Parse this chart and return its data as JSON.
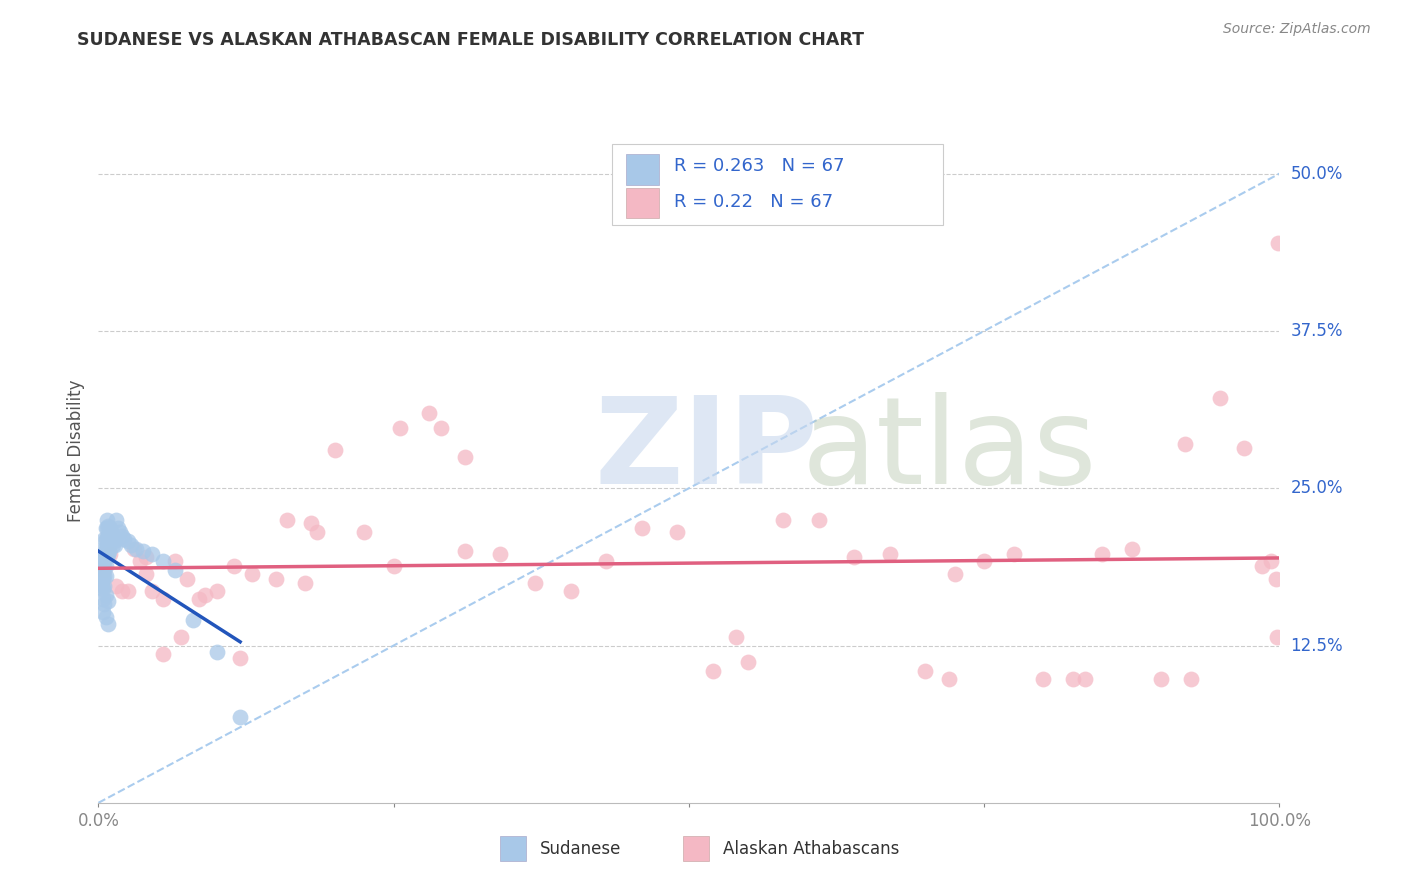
{
  "title": "SUDANESE VS ALASKAN ATHABASCAN FEMALE DISABILITY CORRELATION CHART",
  "source": "Source: ZipAtlas.com",
  "ylabel": "Female Disability",
  "xlim": [
    0.0,
    1.0
  ],
  "ylim": [
    0.0,
    0.56
  ],
  "ytick_labels": [
    "12.5%",
    "25.0%",
    "37.5%",
    "50.0%"
  ],
  "ytick_values": [
    0.125,
    0.25,
    0.375,
    0.5
  ],
  "R_sudanese": 0.263,
  "N_sudanese": 67,
  "R_alaskan": 0.22,
  "N_alaskan": 67,
  "color_sudanese": "#A8C8E8",
  "color_alaskan": "#F4B8C4",
  "line_color_sudanese": "#2255BB",
  "line_color_alaskan": "#E06080",
  "dashed_line_color": "#AACCEE",
  "background_color": "#FFFFFF",
  "sudanese_x": [
    0.001,
    0.001,
    0.002,
    0.002,
    0.002,
    0.003,
    0.003,
    0.003,
    0.003,
    0.004,
    0.004,
    0.004,
    0.004,
    0.004,
    0.005,
    0.005,
    0.005,
    0.005,
    0.005,
    0.005,
    0.006,
    0.006,
    0.006,
    0.006,
    0.006,
    0.006,
    0.007,
    0.007,
    0.007,
    0.007,
    0.007,
    0.008,
    0.008,
    0.008,
    0.008,
    0.009,
    0.009,
    0.009,
    0.01,
    0.01,
    0.011,
    0.011,
    0.012,
    0.012,
    0.013,
    0.014,
    0.015,
    0.017,
    0.018,
    0.02,
    0.022,
    0.025,
    0.028,
    0.032,
    0.038,
    0.045,
    0.055,
    0.065,
    0.08,
    0.1,
    0.12,
    0.008,
    0.006,
    0.005,
    0.004,
    0.006,
    0.008
  ],
  "sudanese_y": [
    0.185,
    0.175,
    0.195,
    0.185,
    0.175,
    0.195,
    0.188,
    0.18,
    0.172,
    0.192,
    0.185,
    0.178,
    0.17,
    0.162,
    0.21,
    0.202,
    0.195,
    0.188,
    0.18,
    0.172,
    0.218,
    0.21,
    0.202,
    0.195,
    0.188,
    0.18,
    0.225,
    0.218,
    0.21,
    0.202,
    0.195,
    0.22,
    0.212,
    0.205,
    0.198,
    0.215,
    0.208,
    0.2,
    0.218,
    0.21,
    0.215,
    0.208,
    0.212,
    0.205,
    0.208,
    0.205,
    0.225,
    0.218,
    0.215,
    0.212,
    0.21,
    0.208,
    0.205,
    0.202,
    0.2,
    0.198,
    0.192,
    0.185,
    0.145,
    0.12,
    0.068,
    0.16,
    0.165,
    0.158,
    0.152,
    0.148,
    0.142
  ],
  "alaskan_x": [
    0.005,
    0.01,
    0.015,
    0.02,
    0.03,
    0.035,
    0.04,
    0.045,
    0.055,
    0.065,
    0.075,
    0.085,
    0.1,
    0.115,
    0.13,
    0.15,
    0.175,
    0.2,
    0.225,
    0.255,
    0.28,
    0.31,
    0.34,
    0.37,
    0.4,
    0.43,
    0.46,
    0.49,
    0.52,
    0.55,
    0.58,
    0.61,
    0.64,
    0.67,
    0.7,
    0.725,
    0.75,
    0.775,
    0.8,
    0.825,
    0.85,
    0.875,
    0.9,
    0.925,
    0.95,
    0.97,
    0.985,
    0.993,
    0.997,
    0.999,
    0.055,
    0.07,
    0.16,
    0.185,
    0.25,
    0.31,
    0.54,
    0.72,
    0.835,
    0.92,
    0.998,
    0.025,
    0.04,
    0.09,
    0.12,
    0.18,
    0.29
  ],
  "alaskan_y": [
    0.185,
    0.198,
    0.172,
    0.168,
    0.202,
    0.192,
    0.182,
    0.168,
    0.162,
    0.192,
    0.178,
    0.162,
    0.168,
    0.188,
    0.182,
    0.178,
    0.175,
    0.28,
    0.215,
    0.298,
    0.31,
    0.275,
    0.198,
    0.175,
    0.168,
    0.192,
    0.218,
    0.215,
    0.105,
    0.112,
    0.225,
    0.225,
    0.195,
    0.198,
    0.105,
    0.182,
    0.192,
    0.198,
    0.098,
    0.098,
    0.198,
    0.202,
    0.098,
    0.098,
    0.322,
    0.282,
    0.188,
    0.192,
    0.178,
    0.445,
    0.118,
    0.132,
    0.225,
    0.215,
    0.188,
    0.2,
    0.132,
    0.098,
    0.098,
    0.285,
    0.132,
    0.168,
    0.195,
    0.165,
    0.115,
    0.222,
    0.298
  ]
}
